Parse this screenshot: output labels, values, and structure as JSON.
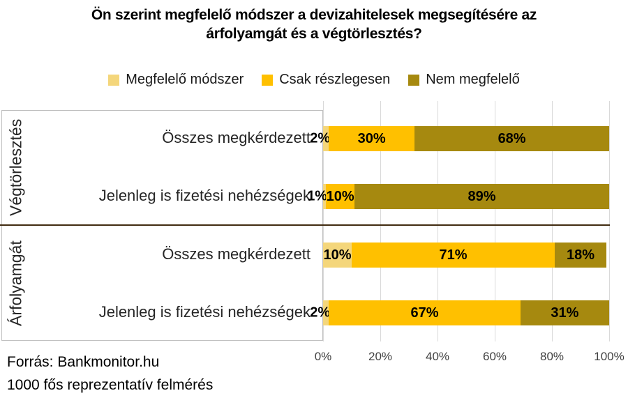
{
  "title": {
    "line1": "Ön szerint megfelelő módszer a devizahitelesek megsegítésére az",
    "line2": "árfolyamgát és a végtörlesztés?"
  },
  "footer": {
    "line1": "Forrás: Bankmonitor.hu",
    "line2": "1000 fős reprezentatív felmérés"
  },
  "chart_data": {
    "type": "bar",
    "orientation": "horizontal",
    "stacked": true,
    "title": "Ön szerint megfelelő módszer a devizahitelesek megsegítésére az árfolyamgát és a végtörlesztés?",
    "series": [
      "Megfelelő módszer",
      "Csak részlegesen",
      "Nem megfelelő"
    ],
    "colors": [
      "#F4D67B",
      "#FFC000",
      "#A6890F"
    ],
    "groups": [
      {
        "name": "Végtörlesztés",
        "rows": [
          {
            "label": "Összes megkérdezett",
            "values": [
              2,
              30,
              68
            ]
          },
          {
            "label": "Jelenleg is fizetési nehézségek",
            "values": [
              1,
              10,
              89
            ]
          }
        ]
      },
      {
        "name": "Árfolyamgát",
        "rows": [
          {
            "label": "Összes megkérdezett",
            "values": [
              10,
              71,
              18
            ]
          },
          {
            "label": "Jelenleg is fizetési nehézségek",
            "values": [
              2,
              67,
              31
            ]
          }
        ]
      }
    ],
    "x_ticks": [
      "0%",
      "20%",
      "40%",
      "60%",
      "80%",
      "100%"
    ],
    "xlim": [
      0,
      100
    ],
    "value_suffix": "%",
    "grid": true,
    "grid_color": "#D9D9D9",
    "separator_color": "#402B10",
    "legend_position": "top"
  }
}
